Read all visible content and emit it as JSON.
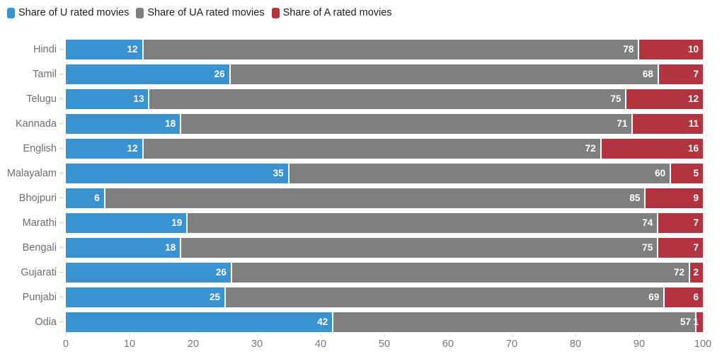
{
  "chart_data": {
    "type": "bar",
    "stacked": true,
    "orientation": "horizontal",
    "title": "",
    "xlabel": "",
    "ylabel": "",
    "xlim": [
      0,
      100
    ],
    "x_ticks": [
      0,
      10,
      20,
      30,
      40,
      50,
      60,
      70,
      80,
      90,
      100
    ],
    "grid": false,
    "legend_position": "top",
    "categories": [
      "Hindi",
      "Tamil",
      "Telugu",
      "Kannada",
      "English",
      "Malayalam",
      "Bhojpuri",
      "Marathi",
      "Bengali",
      "Gujarati",
      "Punjabi",
      "Odia"
    ],
    "series": [
      {
        "name": "Share of U rated movies",
        "key": "u",
        "color": "#3a92d0",
        "values": [
          12,
          26,
          13,
          18,
          12,
          35,
          6,
          19,
          18,
          26,
          25,
          42
        ]
      },
      {
        "name": "Share of UA rated movies",
        "key": "ua",
        "color": "#7f7f7f",
        "values": [
          78,
          68,
          75,
          71,
          72,
          60,
          85,
          74,
          75,
          72,
          69,
          57
        ]
      },
      {
        "name": "Share of A rated movies",
        "key": "a",
        "color": "#b23441",
        "values": [
          10,
          7,
          12,
          11,
          16,
          5,
          9,
          7,
          7,
          2,
          6,
          1
        ]
      }
    ]
  },
  "colors": {
    "legend_text": "#1d1d1d",
    "category_label": "#6e6e6e",
    "axis_label": "#767676",
    "value_label": "#ffffff",
    "background": "#ffffff"
  }
}
